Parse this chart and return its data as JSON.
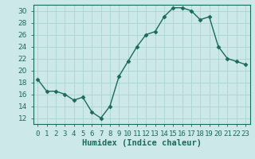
{
  "x": [
    0,
    1,
    2,
    3,
    4,
    5,
    6,
    7,
    8,
    9,
    10,
    11,
    12,
    13,
    14,
    15,
    16,
    17,
    18,
    19,
    20,
    21,
    22,
    23
  ],
  "y": [
    18.5,
    16.5,
    16.5,
    16.0,
    15.0,
    15.5,
    13.0,
    12.0,
    14.0,
    19.0,
    21.5,
    24.0,
    26.0,
    26.5,
    29.0,
    30.5,
    30.5,
    30.0,
    28.5,
    29.0,
    24.0,
    22.0,
    21.5,
    21.0
  ],
  "line_color": "#1a6b5a",
  "marker": "D",
  "markersize": 2.5,
  "linewidth": 1.0,
  "bg_color": "#cce8e8",
  "grid_color": "#aad4d4",
  "xlabel": "Humidex (Indice chaleur)",
  "xlim": [
    -0.5,
    23.5
  ],
  "ylim": [
    11,
    31
  ],
  "yticks": [
    12,
    14,
    16,
    18,
    20,
    22,
    24,
    26,
    28,
    30
  ],
  "xtick_labels": [
    "0",
    "1",
    "2",
    "3",
    "4",
    "5",
    "6",
    "7",
    "8",
    "9",
    "10",
    "11",
    "12",
    "13",
    "14",
    "15",
    "16",
    "17",
    "18",
    "19",
    "20",
    "21",
    "22",
    "23"
  ],
  "xlabel_fontsize": 7.5,
  "tick_fontsize": 6.5
}
